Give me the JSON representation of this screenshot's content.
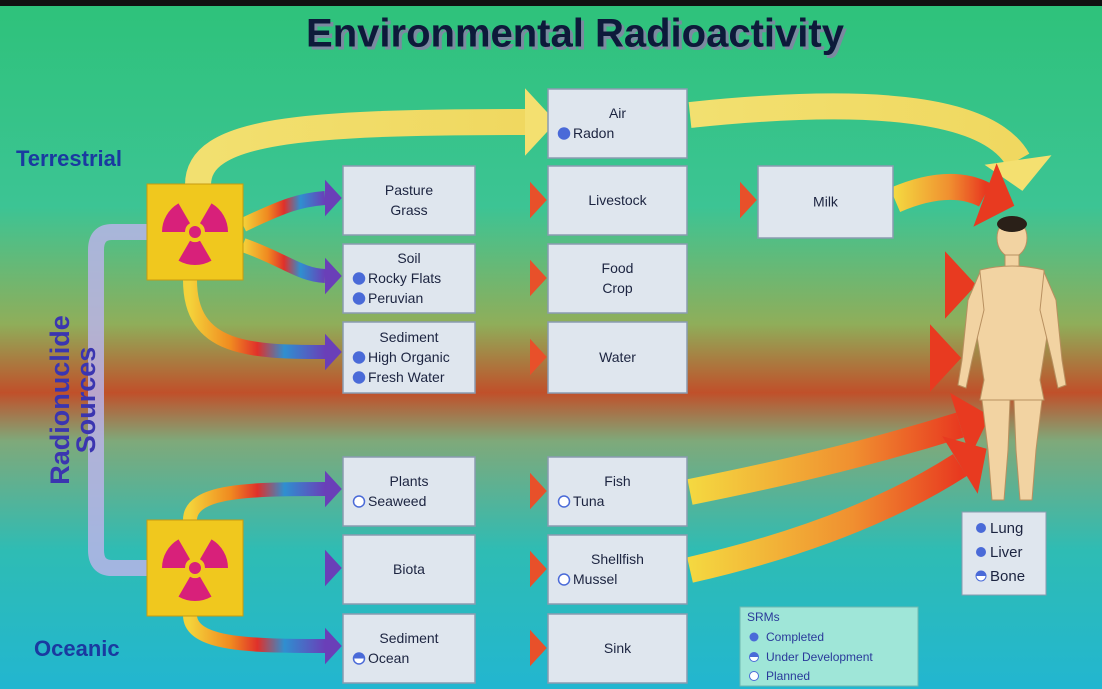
{
  "title": "Environmental Radioactivity",
  "sources": {
    "terrestrial": "Terrestrial",
    "oceanic": "Oceanic",
    "label": [
      "Radionuclide",
      "Sources"
    ]
  },
  "nodes": [
    {
      "lines": [
        "Air",
        "Radon"
      ]
    },
    {
      "lines": [
        "Pasture",
        "Grass"
      ]
    },
    {
      "lines": [
        "Livestock"
      ]
    },
    {
      "lines": [
        "Milk"
      ]
    },
    {
      "lines": [
        "Soil",
        "Rocky Flats",
        "Peruvian"
      ]
    },
    {
      "lines": [
        "Food",
        "Crop"
      ]
    },
    {
      "lines": [
        "Sediment",
        "High Organic",
        "Fresh Water"
      ]
    },
    {
      "lines": [
        "Water"
      ]
    },
    {
      "lines": [
        "Plants",
        "Seaweed"
      ]
    },
    {
      "lines": [
        "Fish",
        "Tuna"
      ]
    },
    {
      "lines": [
        "Biota"
      ]
    },
    {
      "lines": [
        "Shellfish",
        "Mussel"
      ]
    },
    {
      "lines": [
        "Sediment",
        "Ocean"
      ]
    },
    {
      "lines": [
        "Sink"
      ]
    }
  ],
  "body_parts": [
    "Lung",
    "Liver",
    "Bone"
  ],
  "legend": {
    "title": "SRMs",
    "items": [
      "Completed",
      "Under Development",
      "Planned"
    ]
  }
}
